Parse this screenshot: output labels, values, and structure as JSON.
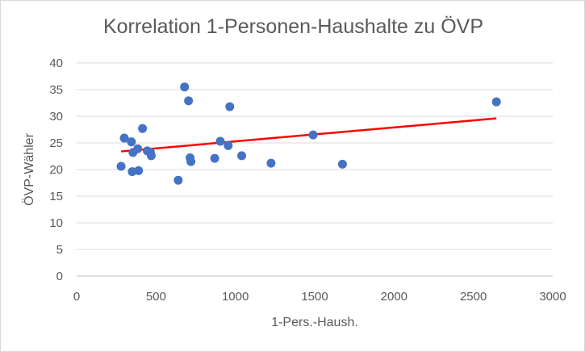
{
  "chart_data": {
    "type": "scatter",
    "title": "Korrelation 1-Personen-Haushalte zu ÖVP",
    "xlabel": "1-Pers.-Haush.",
    "ylabel": "ÖVP-Wähler",
    "xlim": [
      0,
      3000
    ],
    "ylim": [
      0,
      40
    ],
    "xticks": [
      0,
      500,
      1000,
      1500,
      2000,
      2500,
      3000
    ],
    "yticks": [
      0,
      5,
      10,
      15,
      20,
      25,
      30,
      35,
      40
    ],
    "grid": "horizontal",
    "legend": "none",
    "colors": {
      "points": "#4472c4",
      "trendline": "#ff0000",
      "grid": "#d9d9d9",
      "text": "#595959"
    },
    "points": [
      {
        "x": 280,
        "y": 20.6
      },
      {
        "x": 300,
        "y": 25.9
      },
      {
        "x": 345,
        "y": 25.2
      },
      {
        "x": 350,
        "y": 19.6
      },
      {
        "x": 355,
        "y": 23.2
      },
      {
        "x": 385,
        "y": 23.9
      },
      {
        "x": 390,
        "y": 19.8
      },
      {
        "x": 415,
        "y": 27.7
      },
      {
        "x": 445,
        "y": 23.5
      },
      {
        "x": 465,
        "y": 23.2
      },
      {
        "x": 470,
        "y": 22.6
      },
      {
        "x": 640,
        "y": 18.0
      },
      {
        "x": 680,
        "y": 35.5
      },
      {
        "x": 705,
        "y": 32.9
      },
      {
        "x": 715,
        "y": 22.2
      },
      {
        "x": 720,
        "y": 21.5
      },
      {
        "x": 870,
        "y": 22.1
      },
      {
        "x": 905,
        "y": 25.3
      },
      {
        "x": 955,
        "y": 24.5
      },
      {
        "x": 965,
        "y": 31.8
      },
      {
        "x": 1040,
        "y": 22.6
      },
      {
        "x": 1225,
        "y": 21.2
      },
      {
        "x": 1490,
        "y": 26.5
      },
      {
        "x": 1675,
        "y": 21.0
      },
      {
        "x": 2645,
        "y": 32.7
      }
    ],
    "trendline": {
      "type": "linear",
      "x": [
        280,
        2645
      ],
      "y": [
        23.4,
        29.6
      ]
    }
  }
}
